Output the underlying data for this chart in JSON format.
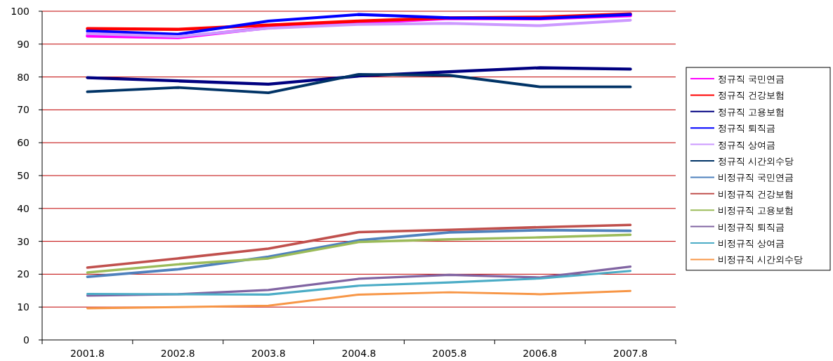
{
  "chart_data": {
    "type": "line",
    "categories": [
      "2001.8",
      "2002.8",
      "2003.8",
      "2004.8",
      "2005.8",
      "2006.8",
      "2007.8"
    ],
    "ylim": [
      0,
      100
    ],
    "yticks": [
      0,
      10,
      20,
      30,
      40,
      50,
      60,
      70,
      80,
      90,
      100
    ],
    "grid": "y",
    "legend": "right",
    "marker": "none",
    "line_style": "solid",
    "series": [
      {
        "name": "정규직 국민연금",
        "color": "#ff00ff",
        "values": [
          92.5,
          92,
          95,
          96.5,
          97.8,
          97.7,
          98.7
        ]
      },
      {
        "name": "정규직 건강보험",
        "color": "#ff0000",
        "values": [
          94.7,
          94.5,
          95.8,
          97,
          98,
          98.2,
          99.2
        ]
      },
      {
        "name": "정규직 고용보험",
        "color": "#000080",
        "values": [
          79.8,
          78.8,
          77.8,
          80.3,
          81.6,
          82.8,
          82.4
        ]
      },
      {
        "name": "정규직 퇴직금",
        "color": "#0000ff",
        "values": [
          94,
          93,
          97,
          99,
          98,
          97.8,
          99
        ]
      },
      {
        "name": "정규직 상여금",
        "color": "#cc99ff",
        "values": [
          93.2,
          92.3,
          94.8,
          96,
          96.3,
          95.6,
          97.3
        ]
      },
      {
        "name": "정규직 시간외수당",
        "color": "#003366",
        "values": [
          75.5,
          76.8,
          75.2,
          80.8,
          80.5,
          77,
          77
        ]
      },
      {
        "name": "비정규직 국민연금",
        "color": "#4f81bd",
        "values": [
          19.2,
          21.5,
          25.3,
          30.3,
          32.7,
          33.4,
          33.2
        ]
      },
      {
        "name": "비정규직 건강보험",
        "color": "#c0504d",
        "values": [
          22,
          24.8,
          27.8,
          32.8,
          33.5,
          34.3,
          35
        ]
      },
      {
        "name": "비정규직 고용보험",
        "color": "#9bbb59",
        "values": [
          20.5,
          23,
          24.8,
          29.8,
          30.6,
          31.2,
          32
        ]
      },
      {
        "name": "비정규직 퇴직금",
        "color": "#8064a2",
        "values": [
          13.5,
          13.9,
          15.2,
          18.6,
          19.8,
          19,
          22.3
        ]
      },
      {
        "name": "비정규직 상여금",
        "color": "#4bacc6",
        "values": [
          14,
          13.9,
          13.8,
          16.5,
          17.5,
          18.7,
          21
        ]
      },
      {
        "name": "비정규직 시간외수당",
        "color": "#f79646",
        "values": [
          9.6,
          10,
          10.4,
          13.8,
          14.5,
          13.9,
          14.9
        ]
      }
    ]
  }
}
